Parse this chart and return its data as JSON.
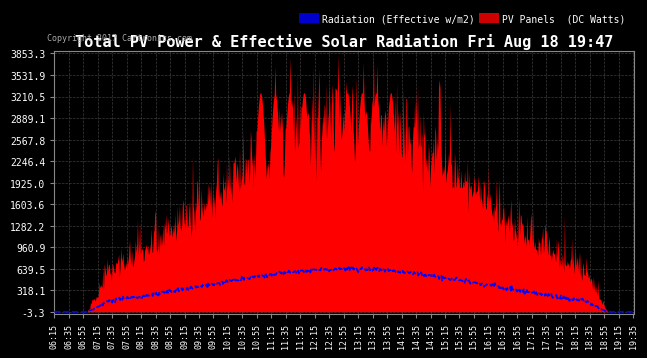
{
  "title": "Total PV Power & Effective Solar Radiation Fri Aug 18 19:47",
  "copyright": "Copyright 2017 Cartronics.com",
  "background_color": "#000000",
  "plot_bg_color": "#000000",
  "grid_color": "#444444",
  "title_color": "#ffffff",
  "legend_radiation_label": "Radiation (Effective w/m2)",
  "legend_pv_label": "PV Panels  (DC Watts)",
  "radiation_color": "#0000ff",
  "pv_color": "#ff0000",
  "ymin": -3.3,
  "ymax": 3853.3,
  "yticks": [
    3853.3,
    3531.9,
    3210.5,
    2889.1,
    2567.8,
    2246.4,
    1925.0,
    1603.6,
    1282.2,
    960.9,
    639.5,
    318.1,
    -3.3
  ],
  "xstart_hour": 6,
  "xstart_min": 15,
  "xend_hour": 19,
  "xend_min": 36,
  "x_interval_min": 20
}
